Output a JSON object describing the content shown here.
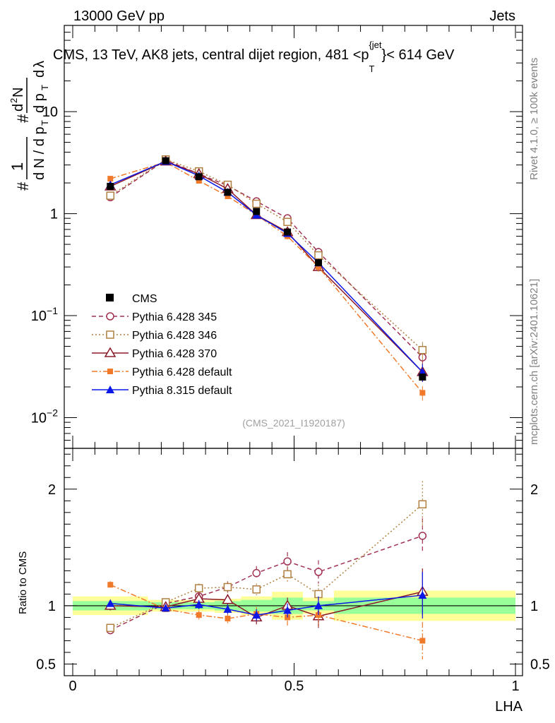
{
  "header": {
    "left": "13000 GeV pp",
    "right": "Jets",
    "title_main": "CMS, 13 TeV, AK8 jets, central dijet region, 481 <p",
    "title_sup": "{jet",
    "title_sub": "T",
    "title_tail": "}< 614 GeV",
    "side_rivet": "Rivet 4.1.0, ≥ 100k events",
    "side_mcplots": "mcplots.cern.ch [arXiv:2401.10621]",
    "analysis_id": "(CMS_2021_I1920187)"
  },
  "axes": {
    "main_ylabel": "1/N dN/dp_T d²N/dp_T dλ",
    "ratio_ylabel": "Ratio to CMS",
    "xlabel": "LHA",
    "main_yticks": [
      {
        "v": 0.01,
        "base": "10",
        "exp": "−2"
      },
      {
        "v": 0.1,
        "base": "10",
        "exp": "−1"
      },
      {
        "v": 1,
        "base": "1",
        "exp": ""
      },
      {
        "v": 10,
        "base": "10",
        "exp": ""
      }
    ],
    "ratio_yticks": [
      {
        "v": 0.5,
        "label": "0.5"
      },
      {
        "v": 1,
        "label": "1"
      },
      {
        "v": 2,
        "label": "2"
      }
    ],
    "xticks": [
      {
        "v": 0,
        "label": "0"
      },
      {
        "v": 0.5,
        "label": "0.5"
      },
      {
        "v": 1,
        "label": "1"
      }
    ]
  },
  "chart_data": {
    "type": "scatter",
    "title": "CMS, 13 TeV, AK8 jets, central dijet region, 481 < pT(jet) < 614 GeV",
    "xlabel": "LHA",
    "ylabel": "1/N dN/dpT d2N/dpT dlambda",
    "xlim": [
      0,
      1
    ],
    "ylim": [
      0.005,
      70
    ],
    "yscale": "log",
    "ratio_ylim": [
      0.4,
      2.35
    ],
    "x": [
      0.085,
      0.21,
      0.285,
      0.35,
      0.415,
      0.485,
      0.555,
      0.79
    ],
    "bin_edges": [
      0.0,
      0.17,
      0.25,
      0.32,
      0.38,
      0.45,
      0.52,
      0.59,
      1.0
    ],
    "reference": {
      "name": "CMS",
      "values": [
        1.85,
        3.3,
        2.3,
        1.62,
        1.05,
        0.66,
        0.33,
        0.025
      ],
      "band_inner": [
        0.04,
        0.03,
        0.03,
        0.04,
        0.05,
        0.07,
        0.04,
        0.07
      ],
      "band_outer": [
        0.08,
        0.05,
        0.05,
        0.06,
        0.08,
        0.12,
        0.07,
        0.13
      ]
    },
    "series": [
      {
        "name": "Pythia 6.428 345",
        "color": "#a03050",
        "dash": "6,4",
        "marker": "open-circle",
        "values": [
          1.45,
          3.35,
          2.45,
          1.88,
          1.32,
          0.9,
          0.42,
          0.039
        ],
        "ratio": [
          0.79,
          1.02,
          1.08,
          1.16,
          1.28,
          1.38,
          1.29,
          1.6
        ],
        "ratio_err": [
          0.03,
          0.03,
          0.04,
          0.05,
          0.06,
          0.08,
          0.1,
          0.15
        ]
      },
      {
        "name": "Pythia 6.428 346",
        "color": "#b08040",
        "dash": "2,3",
        "marker": "open-square",
        "values": [
          1.5,
          3.4,
          2.6,
          1.92,
          1.25,
          0.83,
          0.39,
          0.046
        ],
        "ratio": [
          0.81,
          1.03,
          1.15,
          1.16,
          1.14,
          1.27,
          1.1,
          1.87
        ],
        "ratio_err": [
          0.03,
          0.03,
          0.04,
          0.05,
          0.05,
          0.07,
          0.08,
          0.2
        ]
      },
      {
        "name": "Pythia 6.428 370",
        "color": "#8b1a2b",
        "dash": "",
        "marker": "open-triangle",
        "values": [
          1.85,
          3.25,
          2.45,
          1.75,
          0.97,
          0.66,
          0.3,
          0.028
        ],
        "ratio": [
          1.0,
          0.99,
          1.06,
          1.05,
          0.9,
          1.0,
          0.91,
          1.12
        ],
        "ratio_err": [
          0.04,
          0.03,
          0.04,
          0.05,
          0.06,
          0.07,
          0.1,
          0.2
        ]
      },
      {
        "name": "Pythia 6.428 default",
        "color": "#f07a2a",
        "dash": "8,3,2,3",
        "marker": "filled-square",
        "values": [
          2.2,
          3.2,
          2.1,
          1.48,
          0.97,
          0.6,
          0.3,
          0.0175
        ],
        "ratio": [
          1.18,
          0.97,
          0.92,
          0.89,
          0.93,
          0.9,
          0.92,
          0.7
        ],
        "ratio_err": [
          0.03,
          0.03,
          0.04,
          0.04,
          0.06,
          0.07,
          0.1,
          0.16
        ]
      },
      {
        "name": "Pythia 8.315 default",
        "color": "#0a17e6",
        "dash": "",
        "marker": "filled-triangle",
        "values": [
          1.92,
          3.25,
          2.35,
          1.62,
          0.97,
          0.64,
          0.33,
          0.028
        ],
        "ratio": [
          1.02,
          0.98,
          1.01,
          0.97,
          0.92,
          0.96,
          1.0,
          1.09
        ],
        "ratio_err": [
          0.03,
          0.03,
          0.04,
          0.04,
          0.05,
          0.06,
          0.08,
          0.2
        ]
      }
    ],
    "legend": {
      "position": "bottom-left",
      "reference_label": "CMS"
    }
  }
}
